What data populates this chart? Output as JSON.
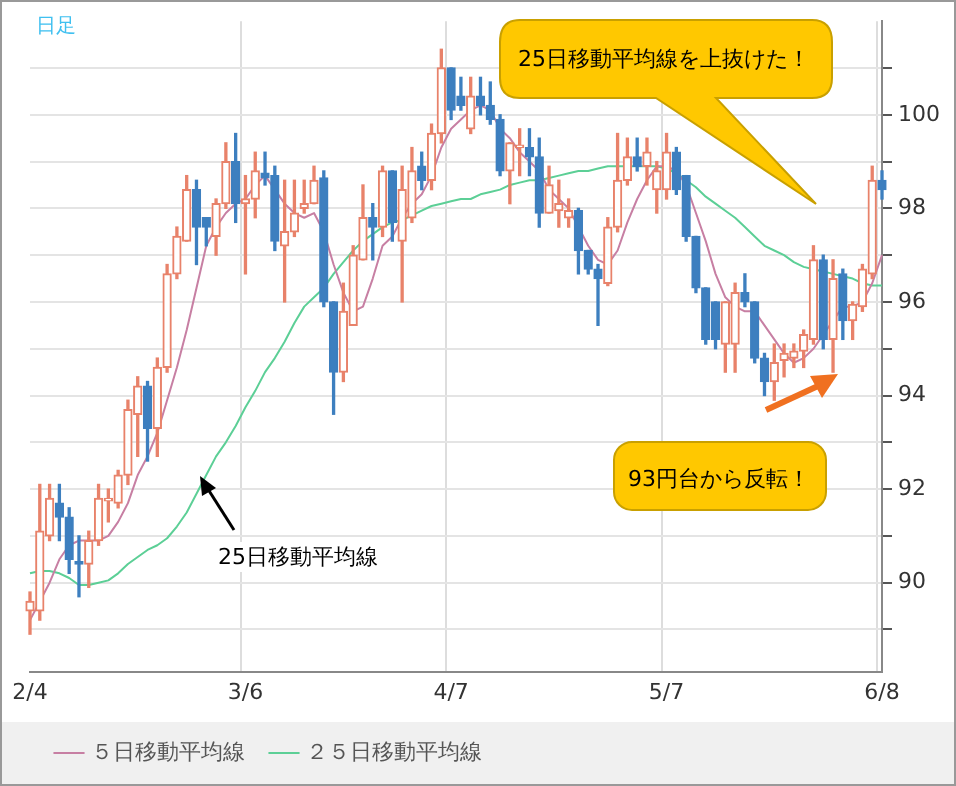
{
  "chart_data": {
    "type": "candlestick",
    "categories": [
      "2/4",
      null,
      null,
      null,
      null,
      null,
      null,
      null,
      null,
      null,
      null,
      null,
      null,
      null,
      null,
      null,
      null,
      null,
      null,
      null,
      null,
      null,
      "3/6",
      null,
      null,
      null,
      null,
      null,
      null,
      null,
      null,
      null,
      null,
      null,
      null,
      null,
      null,
      null,
      null,
      null,
      null,
      null,
      null,
      "4/7",
      null,
      null,
      null,
      null,
      null,
      null,
      null,
      null,
      null,
      null,
      null,
      null,
      null,
      null,
      null,
      null,
      null,
      null,
      null,
      null,
      null,
      "5/7",
      null,
      null,
      null,
      null,
      null,
      null,
      null,
      null,
      null,
      null,
      null,
      null,
      null,
      null,
      null,
      null,
      null,
      null,
      null,
      null,
      null,
      "6/8"
    ],
    "ohlc": [
      [
        89.4,
        89.8,
        88.9,
        89.6
      ],
      [
        89.4,
        92.1,
        89.2,
        91.1
      ],
      [
        91.0,
        92.1,
        90.9,
        91.8
      ],
      [
        91.7,
        92.1,
        90.9,
        91.4
      ],
      [
        91.4,
        91.6,
        90.2,
        90.5
      ],
      [
        90.45,
        91.0,
        89.7,
        90.4
      ],
      [
        90.4,
        91.1,
        89.9,
        90.9
      ],
      [
        90.9,
        92.1,
        90.8,
        91.8
      ],
      [
        91.75,
        92.0,
        91.3,
        91.8
      ],
      [
        91.7,
        92.4,
        91.6,
        92.3
      ],
      [
        92.3,
        93.9,
        92.1,
        93.7
      ],
      [
        93.6,
        94.4,
        92.7,
        94.2
      ],
      [
        94.2,
        94.3,
        92.6,
        93.3
      ],
      [
        93.3,
        94.8,
        92.7,
        94.6
      ],
      [
        94.6,
        96.8,
        94.5,
        96.6
      ],
      [
        96.6,
        97.6,
        96.5,
        97.4
      ],
      [
        97.3,
        98.7,
        97.3,
        98.4
      ],
      [
        98.4,
        98.6,
        96.8,
        97.6
      ],
      [
        97.8,
        97.8,
        97.2,
        97.6
      ],
      [
        97.4,
        98.2,
        97.0,
        98.1
      ],
      [
        98.1,
        99.4,
        98.0,
        99.0
      ],
      [
        99.0,
        99.6,
        97.7,
        98.1
      ],
      [
        98.1,
        98.7,
        96.6,
        98.2
      ],
      [
        98.2,
        99.2,
        97.8,
        98.8
      ],
      [
        98.75,
        99.2,
        98.5,
        98.65
      ],
      [
        98.7,
        98.9,
        97.1,
        97.3
      ],
      [
        97.2,
        98.6,
        96.0,
        97.5
      ],
      [
        97.5,
        98.6,
        97.4,
        97.9
      ],
      [
        98.0,
        98.6,
        97.9,
        98.1
      ],
      [
        98.1,
        98.9,
        98.1,
        98.6
      ],
      [
        98.65,
        98.8,
        95.9,
        96.0
      ],
      [
        96.0,
        96.0,
        93.6,
        94.5
      ],
      [
        94.5,
        96.4,
        94.3,
        95.8
      ],
      [
        95.5,
        97.2,
        95.5,
        97.0
      ],
      [
        96.9,
        98.5,
        96.9,
        97.8
      ],
      [
        97.8,
        98.1,
        96.9,
        97.6
      ],
      [
        97.6,
        98.9,
        97.4,
        98.8
      ],
      [
        98.8,
        98.8,
        97.3,
        97.7
      ],
      [
        97.3,
        98.9,
        96.0,
        98.4
      ],
      [
        97.8,
        99.3,
        97.7,
        98.8
      ],
      [
        98.9,
        99.2,
        98.4,
        98.6
      ],
      [
        98.6,
        99.8,
        98.4,
        99.6
      ],
      [
        99.6,
        101.4,
        99.4,
        101.0
      ],
      [
        101.0,
        101.0,
        99.9,
        100.1
      ],
      [
        100.4,
        100.8,
        100.1,
        100.2
      ],
      [
        99.7,
        100.8,
        99.6,
        100.4
      ],
      [
        100.4,
        100.8,
        100.0,
        100.2
      ],
      [
        100.2,
        100.7,
        99.8,
        99.9
      ],
      [
        99.9,
        100.0,
        98.7,
        98.8
      ],
      [
        98.8,
        99.4,
        98.1,
        99.4
      ],
      [
        99.3,
        99.7,
        98.7,
        99.35
      ],
      [
        99.3,
        99.7,
        98.7,
        99.1
      ],
      [
        99.1,
        99.5,
        97.6,
        97.9
      ],
      [
        97.9,
        98.9,
        97.9,
        98.5
      ],
      [
        97.95,
        98.6,
        97.6,
        98.1
      ],
      [
        97.8,
        98.2,
        97.6,
        97.95
      ],
      [
        97.95,
        98.0,
        96.6,
        97.1
      ],
      [
        97.1,
        97.1,
        96.6,
        96.7
      ],
      [
        96.7,
        96.8,
        95.5,
        96.5
      ],
      [
        96.4,
        97.8,
        96.35,
        97.6
      ],
      [
        97.6,
        99.6,
        97.5,
        98.6
      ],
      [
        98.6,
        99.5,
        98.5,
        99.1
      ],
      [
        99.1,
        99.5,
        98.8,
        98.9
      ],
      [
        98.9,
        99.5,
        98.5,
        99.2
      ],
      [
        98.4,
        99.0,
        97.9,
        98.8
      ],
      [
        98.4,
        99.6,
        98.2,
        99.2
      ],
      [
        99.2,
        99.3,
        98.3,
        98.4
      ],
      [
        98.7,
        98.7,
        97.3,
        97.4
      ],
      [
        97.4,
        97.4,
        96.2,
        96.3
      ],
      [
        96.3,
        96.3,
        95.1,
        95.2
      ],
      [
        96.0,
        96.0,
        95.0,
        95.2
      ],
      [
        95.1,
        96.0,
        94.5,
        96.0
      ],
      [
        95.1,
        96.4,
        94.5,
        96.2
      ],
      [
        96.2,
        96.6,
        95.9,
        96.0
      ],
      [
        96.0,
        96.0,
        94.7,
        94.8
      ],
      [
        94.8,
        94.9,
        94.0,
        94.3
      ],
      [
        94.3,
        95.1,
        93.9,
        94.7
      ],
      [
        94.75,
        95.1,
        94.4,
        94.9
      ],
      [
        94.8,
        95.1,
        94.6,
        94.95
      ],
      [
        94.95,
        95.4,
        94.6,
        95.3
      ],
      [
        95.2,
        97.2,
        95.1,
        96.9
      ],
      [
        96.9,
        97.0,
        95.0,
        95.2
      ],
      [
        95.2,
        96.9,
        94.5,
        96.5
      ],
      [
        96.6,
        96.7,
        95.2,
        95.6
      ],
      [
        95.6,
        96.0,
        95.2,
        95.95
      ],
      [
        95.9,
        96.8,
        95.8,
        96.7
      ],
      [
        96.6,
        98.9,
        96.5,
        98.6
      ],
      [
        98.6,
        98.8,
        98.2,
        98.4
      ]
    ],
    "colors": [
      "#e8826a",
      "#e8826a",
      "#e8826a",
      "#3d7fbf",
      "#3d7fbf",
      "#3d7fbf",
      "#e8826a",
      "#e8826a",
      "#e8826a",
      "#e8826a",
      "#e8826a",
      "#e8826a",
      "#3d7fbf",
      "#e8826a",
      "#e8826a",
      "#e8826a",
      "#e8826a",
      "#3d7fbf",
      "#3d7fbf",
      "#e8826a",
      "#e8826a",
      "#3d7fbf",
      "#e8826a",
      "#e8826a",
      "#3d7fbf",
      "#3d7fbf",
      "#e8826a",
      "#e8826a",
      "#e8826a",
      "#e8826a",
      "#3d7fbf",
      "#3d7fbf",
      "#e8826a",
      "#e8826a",
      "#e8826a",
      "#3d7fbf",
      "#e8826a",
      "#3d7fbf",
      "#e8826a",
      "#e8826a",
      "#3d7fbf",
      "#e8826a",
      "#e8826a",
      "#3d7fbf",
      "#3d7fbf",
      "#e8826a",
      "#3d7fbf",
      "#3d7fbf",
      "#3d7fbf",
      "#e8826a",
      "#e8826a",
      "#3d7fbf",
      "#3d7fbf",
      "#e8826a",
      "#e8826a",
      "#e8826a",
      "#3d7fbf",
      "#3d7fbf",
      "#3d7fbf",
      "#e8826a",
      "#e8826a",
      "#e8826a",
      "#3d7fbf",
      "#e8826a",
      "#e8826a",
      "#e8826a",
      "#3d7fbf",
      "#3d7fbf",
      "#3d7fbf",
      "#3d7fbf",
      "#3d7fbf",
      "#e8826a",
      "#e8826a",
      "#3d7fbf",
      "#3d7fbf",
      "#3d7fbf",
      "#e8826a",
      "#e8826a",
      "#e8826a",
      "#e8826a",
      "#e8826a",
      "#3d7fbf",
      "#e8826a",
      "#3d7fbf",
      "#e8826a",
      "#e8826a",
      "#e8826a",
      "#3d7fbf"
    ],
    "series": [
      {
        "name": "５日移動平均線",
        "type": "line",
        "color": "#c77fa3",
        "values": [
          89.2,
          89.6,
          90.0,
          90.5,
          90.8,
          90.9,
          90.9,
          90.9,
          91.0,
          91.3,
          91.7,
          92.3,
          92.7,
          93.2,
          93.9,
          94.6,
          95.4,
          96.3,
          97.2,
          97.6,
          97.9,
          98.1,
          98.2,
          98.5,
          98.7,
          98.4,
          98.1,
          97.9,
          97.8,
          97.9,
          97.5,
          96.8,
          96.2,
          95.8,
          95.9,
          96.5,
          97.2,
          97.4,
          97.8,
          98.1,
          98.3,
          98.7,
          99.3,
          99.7,
          99.9,
          100.1,
          100.2,
          100.1,
          99.7,
          99.5,
          99.2,
          99.0,
          98.8,
          98.4,
          98.2,
          98.0,
          97.6,
          97.2,
          96.9,
          96.8,
          97.1,
          97.7,
          98.2,
          98.6,
          98.9,
          98.9,
          98.8,
          98.5,
          97.9,
          97.3,
          96.6,
          96.1,
          95.9,
          95.8,
          95.8,
          95.5,
          95.2,
          94.9,
          94.7,
          94.8,
          95.0,
          95.3,
          95.6,
          95.9,
          95.9,
          96.0,
          96.4,
          97.0
        ]
      },
      {
        "name": "２５日移動平均線",
        "type": "line",
        "color": "#5ccf96",
        "values": [
          90.2,
          90.25,
          90.25,
          90.2,
          90.1,
          89.95,
          89.95,
          90.0,
          90.05,
          90.2,
          90.4,
          90.55,
          90.7,
          90.8,
          90.95,
          91.2,
          91.5,
          91.9,
          92.3,
          92.7,
          93.0,
          93.35,
          93.75,
          94.1,
          94.5,
          94.8,
          95.15,
          95.55,
          95.9,
          96.1,
          96.3,
          96.6,
          96.85,
          97.1,
          97.3,
          97.45,
          97.6,
          97.7,
          97.75,
          97.85,
          97.95,
          98.05,
          98.1,
          98.15,
          98.2,
          98.2,
          98.3,
          98.35,
          98.4,
          98.5,
          98.55,
          98.6,
          98.6,
          98.65,
          98.7,
          98.75,
          98.8,
          98.8,
          98.85,
          98.9,
          98.9,
          98.9,
          98.9,
          98.9,
          98.9,
          98.85,
          98.75,
          98.6,
          98.45,
          98.25,
          98.1,
          97.95,
          97.8,
          97.6,
          97.4,
          97.2,
          97.1,
          97.0,
          96.85,
          96.75,
          96.7,
          96.65,
          96.6,
          96.55,
          96.5,
          96.4,
          96.35,
          96.35
        ]
      }
    ],
    "ylim": [
      88.1,
      102
    ],
    "yticks": [
      {
        "value": 89,
        "label": null
      },
      90,
      {
        "value": 91,
        "label": null
      },
      92,
      {
        "value": 93,
        "label": null
      },
      94,
      {
        "value": 95,
        "label": null
      },
      96,
      {
        "value": 97,
        "label": null
      },
      98,
      {
        "value": 99,
        "label": null
      },
      100,
      {
        "value": 101,
        "label": null
      }
    ],
    "grid": true,
    "legend": "bottom",
    "annotations": [
      "日足",
      "25日移動平均線を上抜けた！",
      "93円台から反転！",
      "25日移動平均線"
    ]
  }
}
